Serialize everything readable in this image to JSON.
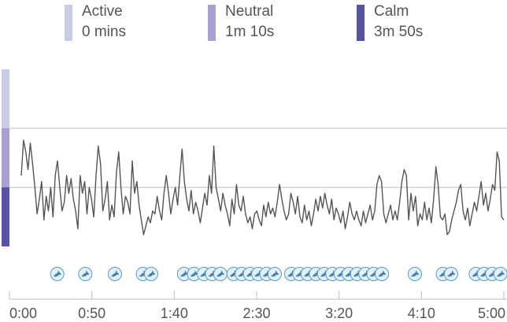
{
  "legend": {
    "active": {
      "label": "Active",
      "value": "0 mins",
      "color": "#c9cde3"
    },
    "neutral": {
      "label": "Neutral",
      "value": "1m 10s",
      "color": "#ab9ed3"
    },
    "calm": {
      "label": "Calm",
      "value": "3m 50s",
      "color": "#5653a6"
    }
  },
  "colors": {
    "line": "#555555",
    "grid": "#bdbdbd",
    "bird_fill": "#e4f0f7",
    "bird_stroke": "#5a9cc4",
    "bird_icon": "#3f84b4"
  },
  "icon": "bird-icon",
  "chart_data": {
    "type": "line",
    "title": "",
    "xlabel": "",
    "ylabel": "",
    "x_ticks": [
      "0:00",
      "0:50",
      "1:40",
      "2:30",
      "3:20",
      "4:10",
      "5:00"
    ],
    "x_tick_seconds": [
      0,
      50,
      100,
      150,
      200,
      250,
      300
    ],
    "x_range_seconds": [
      0,
      300
    ],
    "zones": [
      "Active",
      "Neutral",
      "Calm"
    ],
    "y_range": [
      0,
      3
    ],
    "grid": "horizontal zone boundaries",
    "series": [
      {
        "values": [
          1.2,
          1.8,
          1.6,
          1.3,
          1.75,
          1.4,
          1.0,
          0.55,
          0.8,
          1.1,
          0.45,
          0.85,
          0.6,
          1.0,
          0.5,
          1.2,
          1.45,
          1.0,
          0.6,
          0.75,
          1.2,
          0.9,
          1.15,
          0.8,
          0.6,
          0.3,
          1.2,
          0.9,
          1.1,
          0.55,
          1.0,
          0.8,
          0.5,
          1.2,
          1.7,
          1.4,
          0.6,
          0.8,
          1.1,
          0.45,
          0.7,
          0.5,
          1.25,
          1.6,
          1.0,
          0.55,
          0.85,
          0.75,
          0.55,
          1.45,
          0.9,
          1.1,
          0.7,
          0.45,
          0.2,
          0.35,
          0.5,
          0.4,
          0.6,
          0.55,
          0.85,
          0.6,
          0.45,
          0.9,
          1.2,
          0.9,
          0.55,
          0.8,
          1.0,
          0.7,
          1.2,
          1.65,
          1.1,
          0.8,
          0.6,
          0.95,
          0.55,
          0.75,
          0.6,
          0.4,
          0.65,
          0.9,
          0.7,
          1.2,
          0.9,
          1.7,
          1.0,
          0.8,
          0.6,
          0.9,
          0.7,
          0.55,
          0.35,
          0.8,
          0.55,
          1.05,
          0.7,
          0.6,
          0.85,
          0.55,
          0.4,
          0.5,
          0.3,
          0.55,
          0.6,
          0.45,
          0.35,
          0.7,
          0.5,
          0.75,
          0.55,
          0.65,
          0.5,
          0.75,
          1.05,
          0.8,
          0.6,
          0.45,
          0.55,
          0.9,
          0.75,
          0.55,
          0.85,
          0.5,
          0.4,
          0.7,
          0.45,
          0.6,
          0.35,
          0.55,
          0.8,
          0.6,
          0.85,
          0.65,
          0.9,
          0.7,
          0.55,
          0.8,
          0.45,
          0.65,
          0.55,
          0.4,
          0.6,
          0.3,
          0.5,
          0.75,
          0.55,
          0.45,
          0.6,
          0.45,
          0.35,
          0.6,
          0.4,
          0.55,
          0.7,
          0.45,
          0.6,
          1.05,
          1.2,
          1.1,
          0.55,
          0.4,
          0.55,
          0.7,
          0.45,
          0.6,
          0.45,
          0.75,
          1.1,
          1.3,
          1.2,
          0.45,
          0.9,
          0.6,
          0.85,
          0.35,
          0.55,
          0.45,
          0.75,
          0.45,
          0.65,
          0.4,
          0.8,
          1.35,
          1.05,
          0.5,
          0.45,
          0.55,
          0.2,
          0.25,
          0.45,
          0.6,
          0.75,
          0.95,
          1.05,
          0.6,
          0.45,
          0.65,
          0.35,
          0.55,
          0.75,
          0.6,
          0.85,
          1.1,
          0.7,
          0.9,
          0.6,
          0.8,
          1.05,
          0.95,
          1.6,
          1.45,
          0.5,
          0.45
        ]
      }
    ],
    "bird_markers_seconds": [
      29,
      46,
      64,
      81,
      86,
      106,
      112,
      118,
      123,
      128,
      136,
      141,
      146,
      151,
      156,
      161,
      171,
      176,
      181,
      186,
      191,
      196,
      201,
      206,
      211,
      216,
      221,
      226,
      246,
      263,
      268,
      283,
      288,
      293,
      298,
      308,
      318
    ]
  }
}
